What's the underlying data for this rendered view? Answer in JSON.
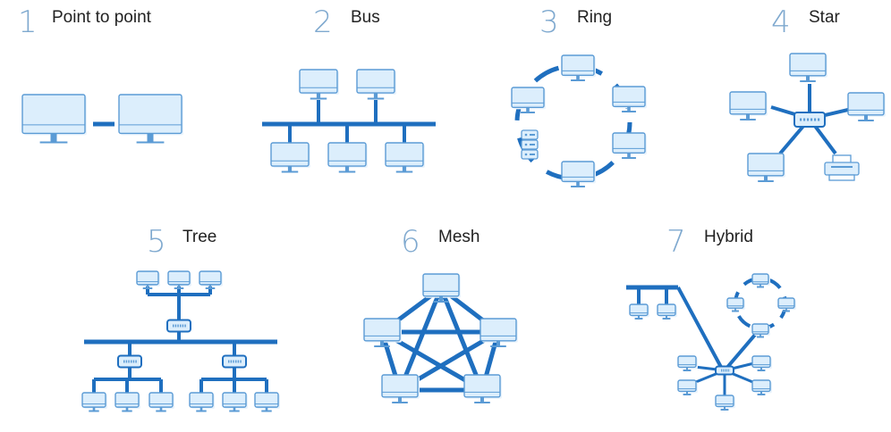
{
  "colors": {
    "accent": "#1f6fbf",
    "screen": "#dceefc",
    "screen_border": "#5b9bd5",
    "number": "#7fa9cf",
    "text": "#222222"
  },
  "topologies": [
    {
      "number": "1",
      "title": "Point to point"
    },
    {
      "number": "2",
      "title": "Bus"
    },
    {
      "number": "3",
      "title": "Ring"
    },
    {
      "number": "4",
      "title": "Star"
    },
    {
      "number": "5",
      "title": "Tree"
    },
    {
      "number": "6",
      "title": "Mesh"
    },
    {
      "number": "7",
      "title": "Hybrid"
    }
  ]
}
